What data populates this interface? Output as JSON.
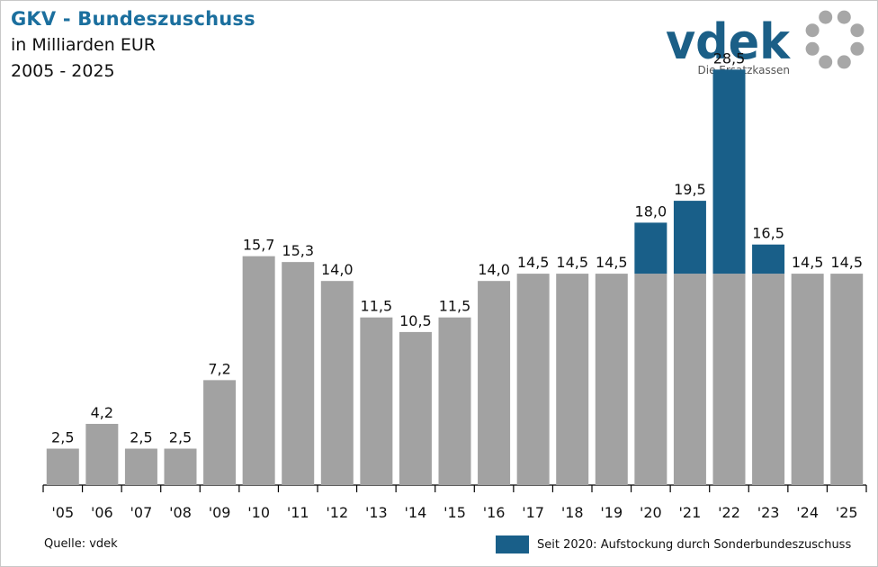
{
  "header": {
    "title": "GKV - Bundeszuschuss",
    "subtitle": "in Milliarden EUR",
    "period": "2005 - 2025"
  },
  "logo": {
    "wordmark": "vdek",
    "tagline": "Die Ersatzkassen",
    "color": "#1b5f87",
    "ring_color": "#a7a7a7"
  },
  "colors": {
    "base": "#a2a2a2",
    "special": "#195f89"
  },
  "chart_data": {
    "type": "bar",
    "stacked": true,
    "categories": [
      "'05",
      "'06",
      "'07",
      "'08",
      "'09",
      "'10",
      "'11",
      "'12",
      "'13",
      "'14",
      "'15",
      "'16",
      "'17",
      "'18",
      "'19",
      "'20",
      "'21",
      "'22",
      "'23",
      "'24",
      "'25"
    ],
    "series": [
      {
        "values": [
          2.5,
          4.2,
          2.5,
          2.5,
          7.2,
          15.7,
          15.3,
          14.0,
          11.5,
          10.5,
          11.5,
          14.0,
          14.5,
          14.5,
          14.5,
          14.5,
          14.5,
          14.5,
          14.5,
          14.5,
          14.5
        ],
        "color": "#a2a2a2"
      },
      {
        "name": "Seit 2020: Aufstockung durch Sonderbundeszuschuss",
        "values": [
          0,
          0,
          0,
          0,
          0,
          0,
          0,
          0,
          0,
          0,
          0,
          0,
          0,
          0,
          0,
          3.5,
          5.0,
          14.0,
          2.0,
          0,
          0
        ],
        "color": "#195f89"
      }
    ],
    "totals_labels": [
      "2,5",
      "4,2",
      "2,5",
      "2,5",
      "7,2",
      "15,7",
      "15,3",
      "14,0",
      "11,5",
      "10,5",
      "11,5",
      "14,0",
      "14,5",
      "14,5",
      "14,5",
      "18,0",
      "19,5",
      "28,5",
      "16,5",
      "14,5",
      "14,5"
    ],
    "ylim": [
      0,
      30
    ],
    "grid": false,
    "legend_position": "bottom-right",
    "xlabel": "",
    "ylabel": ""
  },
  "footer": {
    "source": "Quelle: vdek",
    "legend_label": "Seit 2020: Aufstockung durch Sonderbundeszuschuss"
  }
}
